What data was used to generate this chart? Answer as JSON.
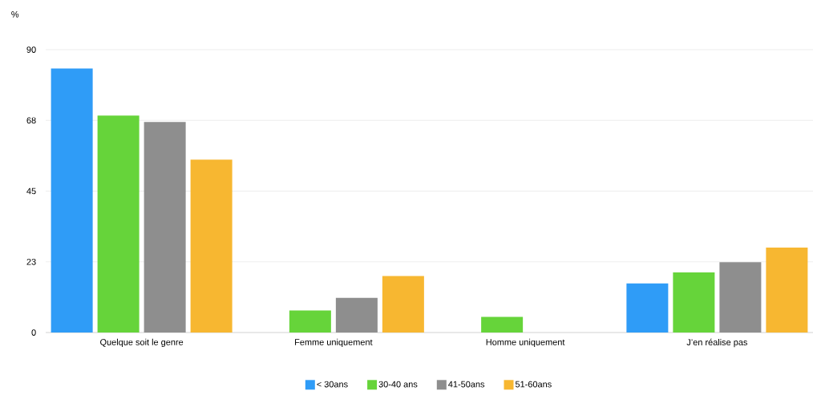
{
  "chart_data": {
    "type": "bar",
    "ylabel": "%",
    "categories": [
      "Quelque soit le genre",
      "Femme uniquement",
      "Homme uniquement",
      "J’en réalise pas"
    ],
    "series": [
      {
        "name": "< 30ans",
        "color": "#2f9cf7",
        "values": [
          84,
          null,
          null,
          15.6
        ]
      },
      {
        "name": "30-40 ans",
        "color": "#66d43a",
        "values": [
          69,
          7,
          5,
          19.1
        ]
      },
      {
        "name": "41-50ans",
        "color": "#8e8e8e",
        "values": [
          67,
          11,
          null,
          22.4
        ]
      },
      {
        "name": "51-60ans",
        "color": "#f7b731",
        "values": [
          55,
          18,
          null,
          27
        ]
      }
    ],
    "ylim": [
      0,
      90
    ],
    "yticks": [
      0,
      {
        "value": 22.5,
        "label": "23"
      },
      45,
      {
        "value": 67.5,
        "label": "68"
      },
      90
    ],
    "grid": "y",
    "legend": "bottom"
  }
}
